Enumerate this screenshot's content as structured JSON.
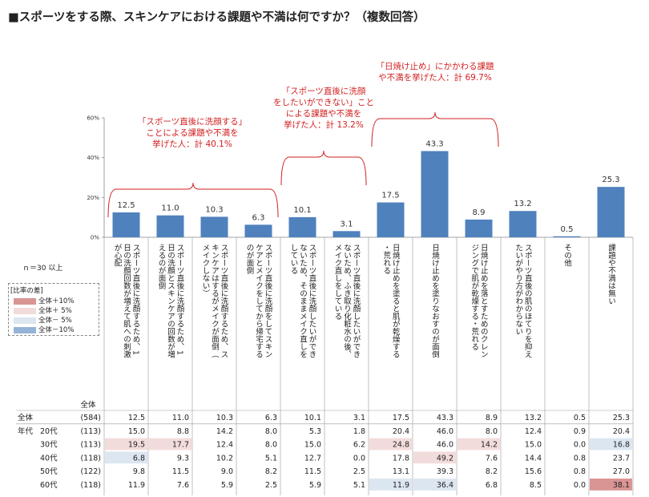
{
  "title": "■スポーツをする際、スキンケアにおける課題や不満は何ですか？（複数回答）",
  "note": "ｎ＝30 以上",
  "legend": {
    "title": "[比率の差]",
    "items": [
      {
        "label": "全体＋10%",
        "color": "#d99594"
      },
      {
        "label": "全体＋ 5%",
        "color": "#f2dcdb"
      },
      {
        "label": "全体－ 5%",
        "color": "#dce6f1"
      },
      {
        "label": "全体－10%",
        "color": "#95b3d7"
      }
    ]
  },
  "annotations": [
    {
      "lines": [
        "「スポーツ直後に洗顔する」",
        "ことによる課題や不満を",
        "挙げた人：計 40.1%"
      ]
    },
    {
      "lines": [
        "「スポーツ直後に洗顔",
        "をしたいができない」こと",
        "による課題や不満を",
        "挙げた人：計 13.2%"
      ]
    },
    {
      "lines": [
        "「日焼け止め」にかかわる課題",
        "や不満を挙げた人：計 69.7%"
      ]
    }
  ],
  "chart_data": {
    "type": "bar",
    "categories": [
      "スポーツ直後に洗顔するため、1日の洗顔回数が増えて肌への刺激が心配",
      "スポーツ直後に洗顔するため、1日の洗顔とスキンケアの回数が増えるのが面倒",
      "スポーツ直後に洗顔するため、スキンケアはするがメイクが面倒（メイクしない）",
      "スポーツ直後に洗顔をしてスキンケアとメイクをしてから帰宅するのが面倒",
      "スポーツ直後に洗顔したいができないため、そのままメイク直しをしている",
      "スポーツ直後に洗顔したいができないため、ふき取り化粧水の後、メイク直しをしている",
      "日焼け止めを塗ると肌が乾燥する・荒れる",
      "日焼け止めを塗りなおすのが面倒",
      "日焼け止めを落とすためのクレンジングで肌が乾燥する・荒れる",
      "スポーツ直後の肌のほてりを抑えたいがやり方がわからない",
      "その他",
      "課題や不満は無い"
    ],
    "values": [
      12.5,
      11.0,
      10.3,
      6.3,
      10.1,
      3.1,
      17.5,
      43.3,
      8.9,
      13.2,
      0.5,
      25.3
    ],
    "value_labels": [
      "12.5",
      "11.0",
      "10.3",
      "6.3",
      "10.1",
      "3.1",
      "17.5",
      "43.3",
      "8.9",
      "13.2",
      "0.5",
      "25.3"
    ],
    "ylim": [
      0,
      60
    ],
    "yticks": [
      "0%",
      "20%",
      "40%",
      "60%"
    ],
    "bar_color": "#4f81bd",
    "table": {
      "header_label": "全体",
      "rows": [
        {
          "group": "全体",
          "label": "",
          "n": "(584)",
          "values": [
            "12.5",
            "11.0",
            "10.3",
            "6.3",
            "10.1",
            "3.1",
            "17.5",
            "43.3",
            "8.9",
            "13.2",
            "0.5",
            "25.3"
          ],
          "levels": [
            0,
            0,
            0,
            0,
            0,
            0,
            0,
            0,
            0,
            0,
            0,
            0
          ]
        },
        {
          "group": "年代",
          "label": "20代",
          "n": "(113)",
          "values": [
            "15.0",
            "8.8",
            "14.2",
            "8.0",
            "5.3",
            "1.8",
            "20.4",
            "46.0",
            "8.0",
            "12.4",
            "0.9",
            "20.4"
          ],
          "levels": [
            0,
            0,
            0,
            0,
            0,
            0,
            0,
            0,
            0,
            0,
            0,
            0
          ]
        },
        {
          "group": "",
          "label": "30代",
          "n": "(113)",
          "values": [
            "19.5",
            "17.7",
            "12.4",
            "8.0",
            "15.0",
            "6.2",
            "24.8",
            "46.0",
            "14.2",
            "15.0",
            "0.0",
            "16.8"
          ],
          "levels": [
            1,
            1,
            0,
            0,
            0,
            0,
            1,
            0,
            1,
            0,
            0,
            -1
          ]
        },
        {
          "group": "",
          "label": "40代",
          "n": "(118)",
          "values": [
            "6.8",
            "9.3",
            "10.2",
            "5.1",
            "12.7",
            "0.0",
            "17.8",
            "49.2",
            "7.6",
            "14.4",
            "0.8",
            "23.7"
          ],
          "levels": [
            -1,
            0,
            0,
            0,
            0,
            0,
            0,
            1,
            0,
            0,
            0,
            0
          ]
        },
        {
          "group": "",
          "label": "50代",
          "n": "(122)",
          "values": [
            "9.8",
            "11.5",
            "9.0",
            "8.2",
            "11.5",
            "2.5",
            "13.1",
            "39.3",
            "8.2",
            "15.6",
            "0.8",
            "27.0"
          ],
          "levels": [
            0,
            0,
            0,
            0,
            0,
            0,
            0,
            0,
            0,
            0,
            0,
            0
          ]
        },
        {
          "group": "",
          "label": "60代",
          "n": "(118)",
          "values": [
            "11.9",
            "7.6",
            "5.9",
            "2.5",
            "5.9",
            "5.1",
            "11.9",
            "36.4",
            "6.8",
            "8.5",
            "0.0",
            "38.1"
          ],
          "levels": [
            0,
            0,
            0,
            0,
            0,
            0,
            -1,
            -1,
            0,
            0,
            0,
            2
          ]
        }
      ]
    }
  }
}
